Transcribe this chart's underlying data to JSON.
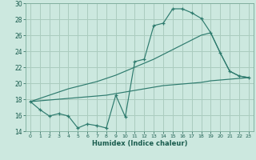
{
  "xlabel": "Humidex (Indice chaleur)",
  "x": [
    0,
    1,
    2,
    3,
    4,
    5,
    6,
    7,
    8,
    9,
    10,
    11,
    12,
    13,
    14,
    15,
    16,
    17,
    18,
    19,
    20,
    21,
    22,
    23
  ],
  "main_y": [
    17.7,
    16.7,
    15.9,
    16.2,
    15.9,
    14.4,
    14.9,
    14.7,
    14.4,
    18.5,
    15.8,
    22.7,
    23.0,
    27.2,
    27.5,
    29.3,
    29.3,
    28.8,
    28.1,
    26.3,
    23.8,
    21.5,
    20.9,
    20.7
  ],
  "upper_y": [
    17.7,
    18.1,
    18.5,
    18.9,
    19.3,
    19.6,
    19.9,
    20.2,
    20.6,
    21.0,
    21.5,
    22.0,
    22.5,
    23.0,
    23.6,
    24.2,
    24.8,
    25.4,
    26.0,
    26.3,
    23.8,
    21.5,
    20.9,
    20.7
  ],
  "lower_y": [
    17.7,
    17.8,
    17.9,
    18.0,
    18.1,
    18.2,
    18.3,
    18.4,
    18.5,
    18.7,
    18.9,
    19.1,
    19.3,
    19.5,
    19.7,
    19.8,
    19.9,
    20.0,
    20.1,
    20.3,
    20.4,
    20.5,
    20.6,
    20.7
  ],
  "line_color": "#2e7b6e",
  "bg_color": "#cce8df",
  "grid_color": "#aaccbf",
  "ylim_min": 14,
  "ylim_max": 30,
  "yticks": [
    14,
    16,
    18,
    20,
    22,
    24,
    26,
    28,
    30
  ],
  "ylabel_size": 5.5,
  "xlabel_size": 6.0
}
